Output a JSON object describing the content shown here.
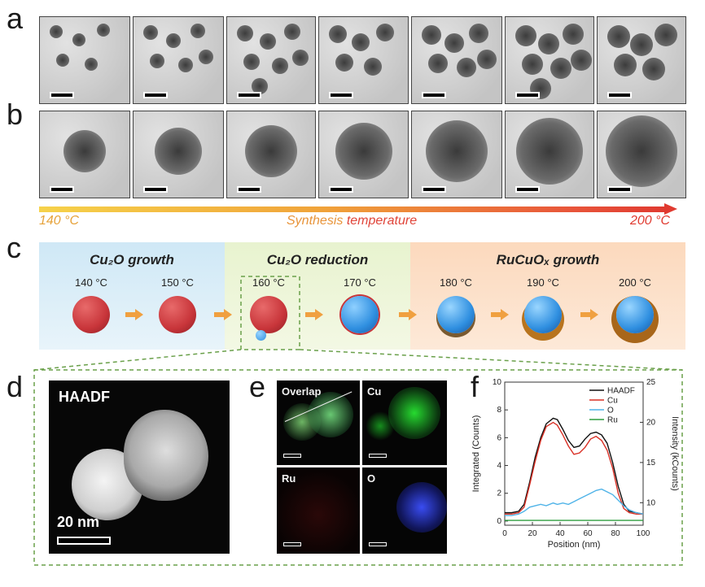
{
  "panels": {
    "a": "a",
    "b": "b",
    "c": "c",
    "d": "d",
    "e": "e",
    "f": "f"
  },
  "gradient": {
    "left_label": "140 °C",
    "center_label_1": "Synthesis",
    "center_label_2": "temperature",
    "right_label": "200 °C"
  },
  "schematic": {
    "phases": [
      {
        "title": "Cu₂O growth",
        "color": "#d7edf8"
      },
      {
        "title": "Cu₂O reduction",
        "color": "#eef6d8"
      },
      {
        "title": "RuCuOₓ growth",
        "color": "#fde3cc"
      }
    ],
    "temps": [
      "140 °C",
      "150 °C",
      "160 °C",
      "170 °C",
      "180 °C",
      "190 °C",
      "200 °C"
    ]
  },
  "haadf": {
    "label": "HAADF",
    "scale": "20 nm"
  },
  "maps": {
    "tiles": [
      "Overlap",
      "Cu",
      "Ru",
      "O"
    ]
  },
  "chart_data": {
    "type": "line",
    "xlabel": "Position (nm)",
    "ylabel": "Integrated (Counts)",
    "y2label": "Intensity (kCounts)",
    "xlim": [
      0,
      100
    ],
    "ylim": [
      -0.3,
      10
    ],
    "y2lim": [
      7.2,
      25
    ],
    "xticks": [
      0,
      20,
      40,
      60,
      80,
      100
    ],
    "yticks": [
      0,
      2,
      4,
      6,
      8,
      10
    ],
    "y2ticks": [
      10,
      15,
      20,
      25
    ],
    "legend": "top-right",
    "series": [
      {
        "name": "HAADF",
        "color": "#111111",
        "x": [
          0,
          5,
          10,
          14,
          18,
          22,
          26,
          30,
          35,
          38,
          42,
          46,
          50,
          54,
          58,
          62,
          66,
          70,
          74,
          78,
          82,
          86,
          90,
          95,
          100
        ],
        "values": [
          0.6,
          0.6,
          0.7,
          1.2,
          2.8,
          4.6,
          6.0,
          7.0,
          7.4,
          7.3,
          6.6,
          5.8,
          5.3,
          5.4,
          5.9,
          6.3,
          6.4,
          6.2,
          5.6,
          4.2,
          2.5,
          1.2,
          0.7,
          0.6,
          0.5
        ]
      },
      {
        "name": "Cu",
        "color": "#d93025",
        "x": [
          0,
          5,
          10,
          14,
          18,
          22,
          26,
          30,
          35,
          38,
          42,
          46,
          50,
          54,
          58,
          62,
          66,
          70,
          74,
          78,
          82,
          86,
          90,
          95,
          100
        ],
        "values": [
          0.5,
          0.5,
          0.6,
          1.0,
          2.6,
          4.3,
          5.8,
          6.8,
          7.1,
          6.9,
          6.2,
          5.4,
          4.8,
          4.9,
          5.3,
          5.9,
          6.1,
          5.8,
          5.1,
          3.8,
          2.0,
          0.9,
          0.6,
          0.5,
          0.5
        ]
      },
      {
        "name": "O",
        "color": "#4fb3e8",
        "x": [
          0,
          5,
          10,
          14,
          18,
          22,
          26,
          30,
          35,
          38,
          42,
          46,
          50,
          54,
          58,
          62,
          66,
          70,
          74,
          78,
          82,
          86,
          90,
          95,
          100
        ],
        "values": [
          0.4,
          0.4,
          0.5,
          0.7,
          1.0,
          1.1,
          1.2,
          1.1,
          1.3,
          1.2,
          1.3,
          1.2,
          1.4,
          1.6,
          1.8,
          2.0,
          2.2,
          2.3,
          2.1,
          1.9,
          1.5,
          1.1,
          0.8,
          0.6,
          0.5
        ]
      },
      {
        "name": "Ru",
        "color": "#2e9e3e",
        "x": [
          0,
          20,
          40,
          60,
          80,
          100
        ],
        "values": [
          0.05,
          0.05,
          0.05,
          0.05,
          0.05,
          0.05
        ]
      }
    ]
  }
}
